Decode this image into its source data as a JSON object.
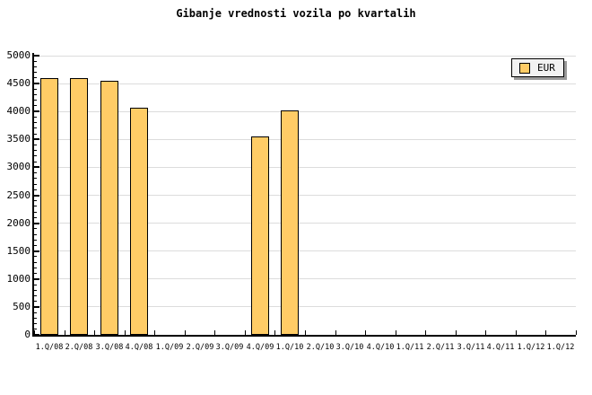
{
  "title": "Gibanje vrednosti vozila po kvartalih",
  "legend": {
    "label": "EUR",
    "swatch_color": "#ffcc66",
    "position": "top-right"
  },
  "colors": {
    "background": "#ffffff",
    "bar_fill": "#ffcc66",
    "bar_border": "#000000",
    "axis": "#000000",
    "grid": "#dcdcdc",
    "legend_bg": "#f2f2f2",
    "legend_shadow": "#999999",
    "text": "#000000"
  },
  "chart_data": {
    "type": "bar",
    "title": "Gibanje vrednosti vozila po kvartalih",
    "xlabel": "",
    "ylabel": "",
    "categories": [
      "1.Q/08",
      "2.Q/08",
      "3.Q/08",
      "4.Q/08",
      "1.Q/09",
      "2.Q/09",
      "3.Q/09",
      "4.Q/09",
      "1.Q/10",
      "2.Q/10",
      "3.Q/10",
      "4.Q/10",
      "1.Q/11",
      "2.Q/11",
      "3.Q/11",
      "4.Q/11",
      "1.Q/12",
      "1.Q/12"
    ],
    "series": [
      {
        "name": "EUR",
        "values": [
          4600,
          4600,
          4550,
          4070,
          null,
          null,
          null,
          3550,
          4020,
          null,
          null,
          null,
          null,
          null,
          null,
          null,
          null,
          null
        ]
      }
    ],
    "ylim": [
      0,
      5000
    ],
    "ytick_step": 500,
    "ytick_minor_step": 100,
    "ytick_labels": [
      "0",
      "500",
      "1000",
      "1500",
      "2000",
      "2500",
      "3000",
      "3500",
      "4000",
      "4500",
      "5000"
    ],
    "grid": true,
    "legend_position": "top-right"
  }
}
